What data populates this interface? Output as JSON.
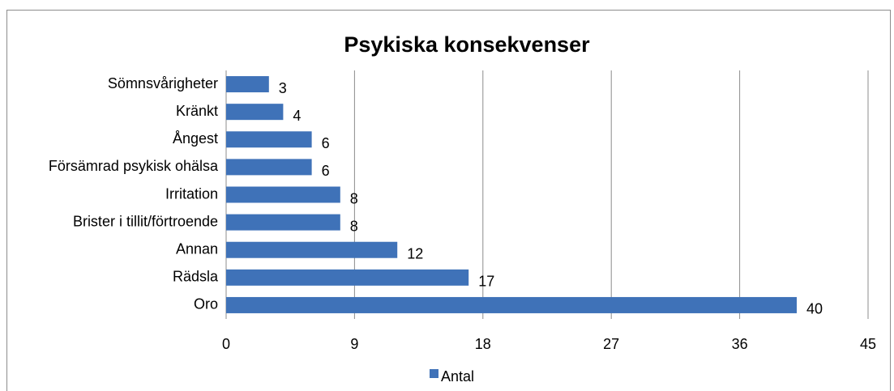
{
  "chart_data": {
    "type": "bar",
    "orientation": "horizontal",
    "title": "Psykiska konsekvenser",
    "categories": [
      "Sömnsvårigheter",
      "Kränkt",
      "Ångest",
      "Försämrad psykisk ohälsa",
      "Irritation",
      "Brister i tillit/förtroende",
      "Annan",
      "Rädsla",
      "Oro"
    ],
    "series": [
      {
        "name": "Antal",
        "color": "#3f72b8",
        "values": [
          3,
          4,
          6,
          6,
          8,
          8,
          12,
          17,
          40
        ]
      }
    ],
    "xlim": [
      0,
      45
    ],
    "xticks": [
      0,
      9,
      18,
      27,
      36,
      45
    ],
    "grid": true,
    "legend": "bottom"
  }
}
